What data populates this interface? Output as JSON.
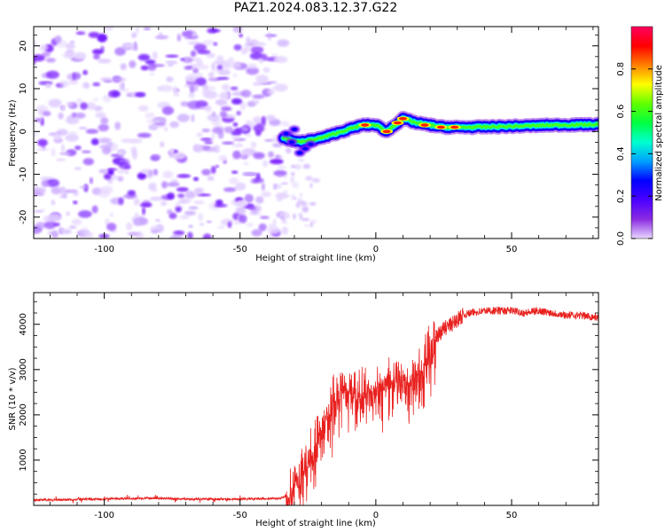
{
  "figure": {
    "title": "PAZ1.2024.083.12.37.G22"
  },
  "chart_data": [
    {
      "type": "heatmap",
      "xlabel": "Height of straight line (km)",
      "ylabel": "Frequency (Hz)",
      "xlim": [
        -126,
        82
      ],
      "ylim": [
        -25,
        24.5
      ],
      "xticks": [
        -100,
        -50,
        0,
        50
      ],
      "xtick_labels": [
        "-100",
        "-50",
        "0",
        "50"
      ],
      "yticks": [
        -20,
        -10,
        0,
        10,
        20
      ],
      "ytick_labels": [
        "-20",
        "-10",
        "0",
        "10",
        "20"
      ],
      "colorbar": {
        "label": "Normalized spectral amplitude",
        "range": [
          0,
          1
        ],
        "ticks": [
          0.0,
          0.2,
          0.4,
          0.6,
          0.8
        ],
        "tick_labels": [
          "0.0",
          "0.2",
          "0.4",
          "0.6",
          "0.8"
        ],
        "colormap": [
          "#e8d8ff",
          "#8a2be2",
          "#4b00ff",
          "#0000ff",
          "#00a0ff",
          "#00ffd0",
          "#00ff40",
          "#60ff00",
          "#ffff00",
          "#ff8000",
          "#ff0000",
          "#ff0060"
        ]
      },
      "signal_ridge": [
        {
          "x": -34,
          "y": -1.5
        },
        {
          "x": -28,
          "y": -2.5
        },
        {
          "x": -20,
          "y": -1.5
        },
        {
          "x": -15,
          "y": -0.5
        },
        {
          "x": -10,
          "y": 0.5
        },
        {
          "x": -5,
          "y": 1.5
        },
        {
          "x": 0,
          "y": 1.5
        },
        {
          "x": 4,
          "y": 0
        },
        {
          "x": 8,
          "y": 2
        },
        {
          "x": 10,
          "y": 3
        },
        {
          "x": 15,
          "y": 2
        },
        {
          "x": 20,
          "y": 1.5
        },
        {
          "x": 25,
          "y": 1
        },
        {
          "x": 35,
          "y": 1
        },
        {
          "x": 50,
          "y": 1.2
        },
        {
          "x": 65,
          "y": 1.5
        },
        {
          "x": 82,
          "y": 1.6
        }
      ],
      "noise_extent_x": [
        -126,
        -33
      ]
    },
    {
      "type": "line",
      "xlabel": "Height of straight line (km)",
      "ylabel": "SNR (10 * v/v)",
      "xlim": [
        -126,
        82
      ],
      "ylim": [
        0,
        4700
      ],
      "xticks": [
        -100,
        -50,
        0,
        50
      ],
      "xtick_labels": [
        "-100",
        "-50",
        "0",
        "50"
      ],
      "yticks": [
        1000,
        2000,
        3000,
        4000
      ],
      "ytick_labels": [
        "1000",
        "2000",
        "3000",
        "4000"
      ],
      "line_color": "#e8201e",
      "series": [
        {
          "x": [
            -126,
            -110,
            -90,
            -80,
            -70,
            -60,
            -50,
            -40,
            -35,
            -32,
            -30,
            -28,
            -26,
            -24,
            -22,
            -20,
            -18,
            -15,
            -12,
            -10,
            -5,
            0,
            5,
            10,
            13,
            15,
            17,
            18,
            20,
            22,
            25,
            28,
            30,
            32,
            35,
            40,
            45,
            50,
            55,
            60,
            65,
            70,
            75,
            82
          ],
          "y": [
            120,
            130,
            150,
            160,
            140,
            140,
            140,
            145,
            160,
            250,
            550,
            700,
            900,
            1200,
            1500,
            1800,
            2100,
            2400,
            2700,
            2600,
            2500,
            2700,
            2900,
            2900,
            2800,
            3000,
            3000,
            3300,
            3500,
            3700,
            3900,
            4000,
            4100,
            4200,
            4250,
            4300,
            4300,
            4300,
            4250,
            4300,
            4250,
            4200,
            4200,
            4150
          ]
        }
      ]
    }
  ]
}
